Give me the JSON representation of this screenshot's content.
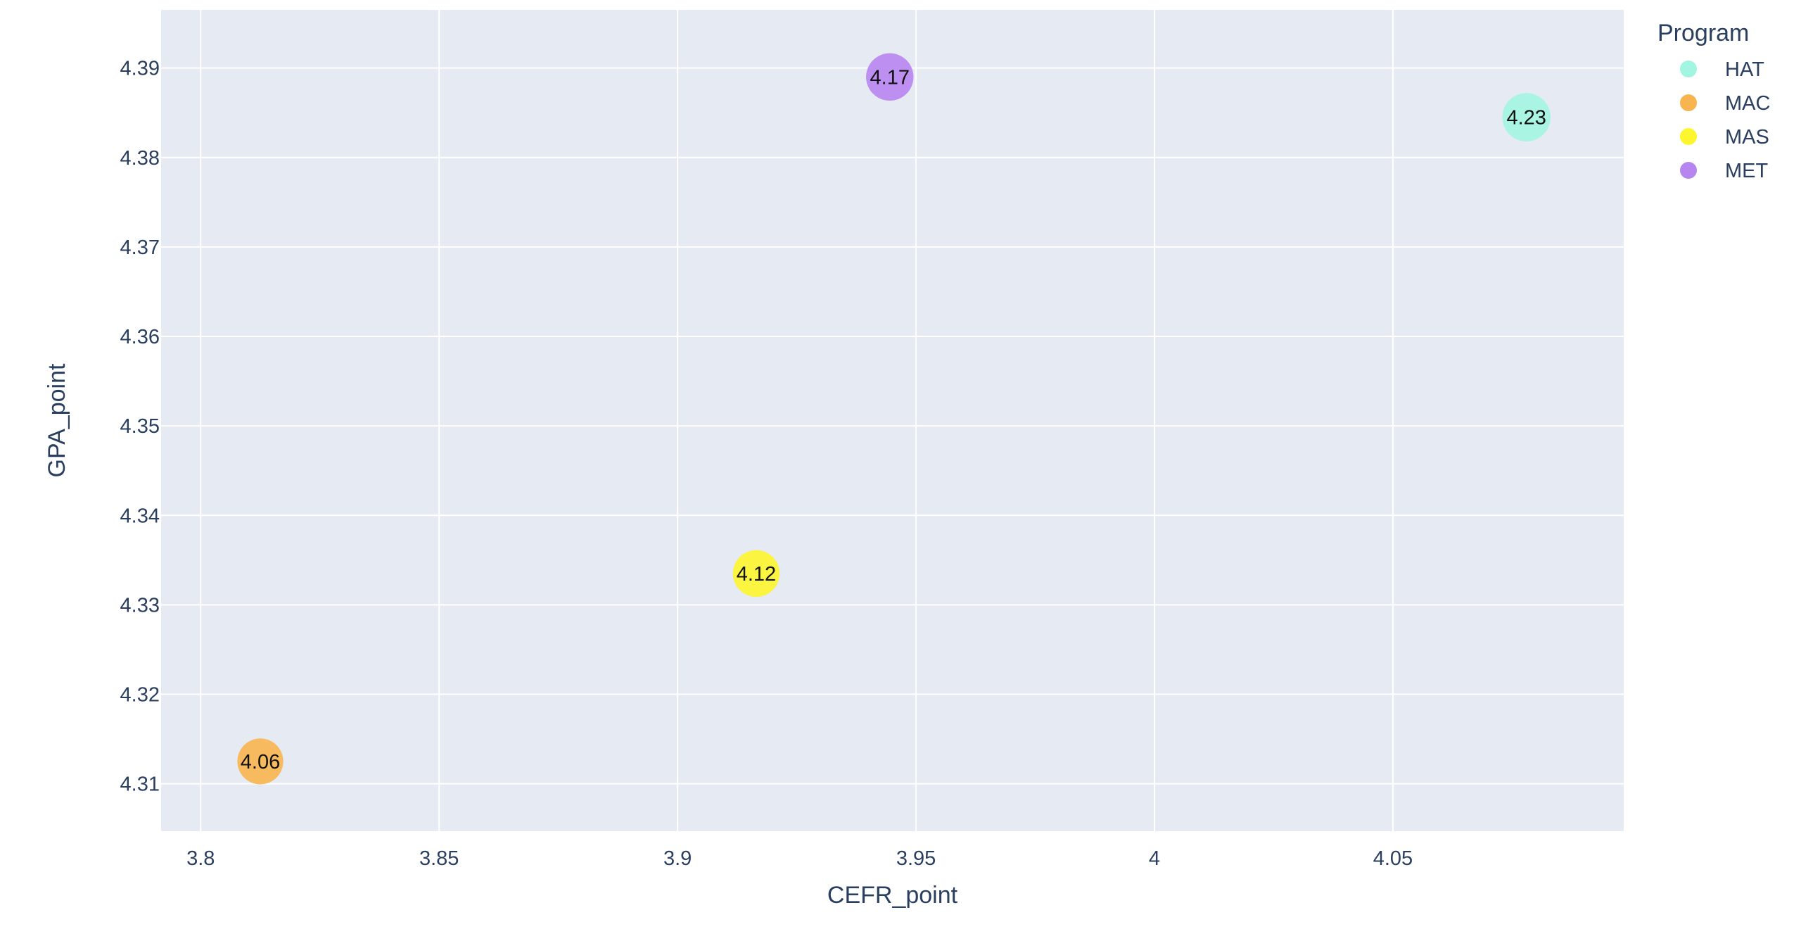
{
  "chart_data": {
    "type": "scatter",
    "xlabel": "CEFR_point",
    "ylabel": "GPA_point",
    "xlim": [
      3.7917,
      4.0984
    ],
    "ylim": [
      4.3047,
      4.3965
    ],
    "x_ticks": [
      3.8,
      3.85,
      3.9,
      3.95,
      4,
      4.05
    ],
    "x_tick_labels": [
      "3.8",
      "3.85",
      "3.9",
      "3.95",
      "4",
      "4.05"
    ],
    "y_ticks": [
      4.31,
      4.32,
      4.33,
      4.34,
      4.35,
      4.36,
      4.37,
      4.38,
      4.39
    ],
    "y_tick_labels": [
      "4.31",
      "4.32",
      "4.33",
      "4.34",
      "4.35",
      "4.36",
      "4.37",
      "4.38",
      "4.39"
    ],
    "grid": true,
    "legend": {
      "title": "Program",
      "placement": "top-right outside"
    },
    "series": [
      {
        "name": "HAT",
        "color": "#a2f5e0",
        "points": [
          {
            "x": 4.078,
            "y": 4.3845,
            "size": 4.23,
            "label": "4.23"
          }
        ]
      },
      {
        "name": "MAC",
        "color": "#f8b54f",
        "points": [
          {
            "x": 3.8125,
            "y": 4.3125,
            "size": 4.06,
            "label": "4.06"
          }
        ]
      },
      {
        "name": "MAS",
        "color": "#fdf52e",
        "points": [
          {
            "x": 3.9165,
            "y": 4.3335,
            "size": 4.12,
            "label": "4.12"
          }
        ]
      },
      {
        "name": "MET",
        "color": "#b785f0",
        "points": [
          {
            "x": 3.9445,
            "y": 4.389,
            "size": 4.17,
            "label": "4.17"
          }
        ]
      }
    ],
    "colors": {
      "plot_background": "#e6eaf3",
      "grid": "#ffffff",
      "text": "#2a3f5f",
      "paper": "#ffffff"
    }
  }
}
